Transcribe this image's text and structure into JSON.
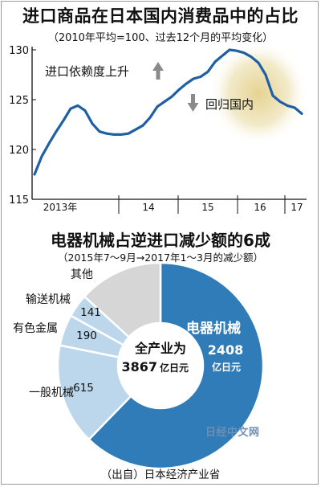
{
  "chart_data": [
    {
      "type": "line",
      "title": "进口商品在日本国内消费品中的占比",
      "subtitle": "（2010年平均=100、过去12个月的平均变化）",
      "ylim": [
        115,
        130
      ],
      "yticks": [
        "115",
        "120",
        "125",
        "130"
      ],
      "x_labels": [
        "2013年",
        "14",
        "15",
        "16",
        "17"
      ],
      "annotations": {
        "up": "进口依赖度上升",
        "down": "回归国内"
      },
      "series": [
        {
          "values": [
            117.5,
            119.3,
            120.6,
            121.8,
            122.9,
            124.1,
            124.4,
            123.9,
            122.6,
            121.8,
            121.6,
            121.5,
            121.5,
            121.6,
            122.0,
            122.4,
            123.2,
            124.3,
            124.8,
            125.3,
            126.0,
            126.6,
            127.1,
            127.3,
            127.8,
            128.8,
            129.4,
            130.0,
            129.9,
            129.7,
            129.3,
            128.7,
            127.5,
            125.4,
            124.8,
            124.4,
            124.2,
            123.6
          ]
        }
      ]
    },
    {
      "type": "pie",
      "title": "电器机械占逆进口减少额的6成",
      "subtitle": "（2015年7～9月→2017年1～3月的减少额）",
      "unit": "亿日元",
      "total_label": "全产业为",
      "total_value": "3867",
      "slices": [
        {
          "label": "电器机械",
          "value": 2408,
          "value_text": "2408",
          "color": "#2f7cb8"
        },
        {
          "label": "一般机械",
          "value": 615,
          "value_text": "615",
          "color": "#bcd7ec"
        },
        {
          "label": "有色金属",
          "value": 190,
          "value_text": "190",
          "color": "#bcd7ec"
        },
        {
          "label": "输送机械",
          "value": 141,
          "value_text": "141",
          "color": "#bcd7ec"
        },
        {
          "label": "其他",
          "value": 513,
          "value_text": "",
          "color": "#d6d6d6"
        }
      ]
    }
  ],
  "source": "（出自）日本经济产业省",
  "watermark": "日经中文网",
  "colors": {
    "line": "#1f5fa3",
    "highlight": "#e8d9a3",
    "arrow": "#8a8a8a"
  }
}
